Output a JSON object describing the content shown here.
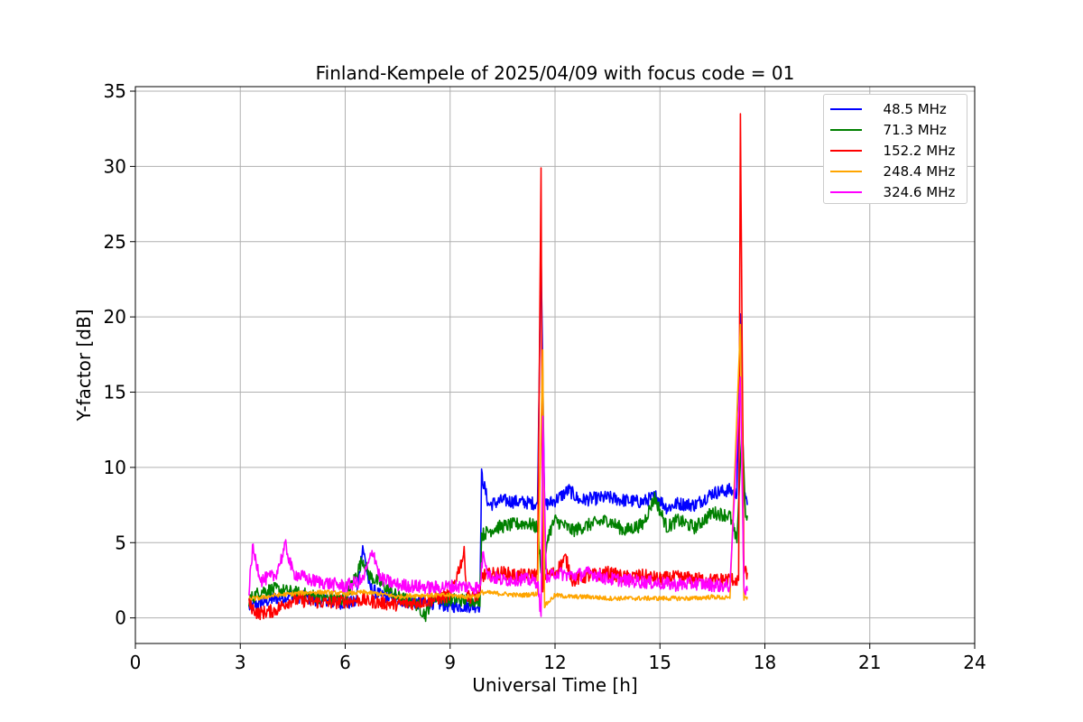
{
  "chart_data": {
    "type": "line",
    "title": "Finland-Kempele of 2025/04/09 with focus code = 01",
    "xlabel": "Universal Time [h]",
    "ylabel": "Y-factor [dB]",
    "xlim": [
      0,
      24
    ],
    "ylim": [
      -1.7,
      35.3
    ],
    "xticks": [
      "0",
      "3",
      "6",
      "9",
      "12",
      "15",
      "18",
      "21",
      "24"
    ],
    "yticks": [
      "0",
      "5",
      "10",
      "15",
      "20",
      "25",
      "30",
      "35"
    ],
    "grid": true,
    "legend_position": "top-right",
    "series": [
      {
        "name": "  48.5 MHz",
        "color": "#0000ff",
        "points": [
          [
            3.25,
            0.7
          ],
          [
            3.6,
            1.0
          ],
          [
            4.0,
            1.3
          ],
          [
            4.5,
            1.5
          ],
          [
            5.0,
            1.3
          ],
          [
            5.5,
            1.1
          ],
          [
            6.0,
            1.0
          ],
          [
            6.3,
            1.0
          ],
          [
            6.5,
            4.8
          ],
          [
            6.7,
            2.0
          ],
          [
            7.0,
            1.5
          ],
          [
            7.5,
            1.2
          ],
          [
            8.0,
            1.0
          ],
          [
            8.5,
            1.0
          ],
          [
            9.0,
            0.8
          ],
          [
            9.5,
            0.8
          ],
          [
            9.85,
            0.8
          ],
          [
            9.9,
            9.5
          ],
          [
            10.1,
            7.5
          ],
          [
            10.5,
            7.8
          ],
          [
            11.0,
            7.7
          ],
          [
            11.5,
            7.6
          ],
          [
            11.6,
            24.5
          ],
          [
            11.7,
            7.5
          ],
          [
            12.0,
            7.8
          ],
          [
            12.4,
            8.5
          ],
          [
            12.7,
            7.8
          ],
          [
            13.0,
            7.9
          ],
          [
            13.5,
            8.0
          ],
          [
            14.0,
            7.8
          ],
          [
            14.5,
            7.7
          ],
          [
            14.9,
            8.1
          ],
          [
            15.2,
            7.3
          ],
          [
            15.5,
            7.6
          ],
          [
            16.0,
            7.5
          ],
          [
            16.5,
            8.3
          ],
          [
            17.0,
            8.5
          ],
          [
            17.2,
            8.2
          ],
          [
            17.3,
            20.2
          ],
          [
            17.4,
            8.5
          ],
          [
            17.5,
            7.5
          ]
        ]
      },
      {
        "name": "  71.3 MHz",
        "color": "#008000",
        "points": [
          [
            3.25,
            1.2
          ],
          [
            3.6,
            1.8
          ],
          [
            4.0,
            1.9
          ],
          [
            4.5,
            1.7
          ],
          [
            5.0,
            1.5
          ],
          [
            5.5,
            1.3
          ],
          [
            6.0,
            1.2
          ],
          [
            6.5,
            3.9
          ],
          [
            6.7,
            2.8
          ],
          [
            7.0,
            2.3
          ],
          [
            7.5,
            1.4
          ],
          [
            8.0,
            1.0
          ],
          [
            8.3,
            0.2
          ],
          [
            8.5,
            1.4
          ],
          [
            9.0,
            1.2
          ],
          [
            9.5,
            1.2
          ],
          [
            9.85,
            1.2
          ],
          [
            9.9,
            5.5
          ],
          [
            10.3,
            6.0
          ],
          [
            10.8,
            6.2
          ],
          [
            11.2,
            6.3
          ],
          [
            11.5,
            6.0
          ],
          [
            11.65,
            2.0
          ],
          [
            11.8,
            5.5
          ],
          [
            12.0,
            6.5
          ],
          [
            12.5,
            5.8
          ],
          [
            13.0,
            6.2
          ],
          [
            13.5,
            6.5
          ],
          [
            14.0,
            5.8
          ],
          [
            14.5,
            6.2
          ],
          [
            14.85,
            8.0
          ],
          [
            15.2,
            6.0
          ],
          [
            15.5,
            6.5
          ],
          [
            16.0,
            6.0
          ],
          [
            16.5,
            7.0
          ],
          [
            17.0,
            6.8
          ],
          [
            17.2,
            5.0
          ],
          [
            17.35,
            13.0
          ],
          [
            17.45,
            6.5
          ],
          [
            17.5,
            6.8
          ]
        ]
      },
      {
        "name": "  152.2 MHz",
        "color": "#ff0000",
        "points": [
          [
            3.25,
            0.9
          ],
          [
            3.5,
            0.3
          ],
          [
            4.0,
            0.5
          ],
          [
            4.3,
            1.0
          ],
          [
            4.5,
            1.2
          ],
          [
            5.0,
            1.1
          ],
          [
            5.5,
            1.0
          ],
          [
            6.0,
            1.1
          ],
          [
            6.5,
            1.2
          ],
          [
            7.0,
            1.0
          ],
          [
            7.5,
            0.9
          ],
          [
            8.0,
            1.0
          ],
          [
            8.5,
            1.2
          ],
          [
            9.0,
            1.5
          ],
          [
            9.4,
            4.3
          ],
          [
            9.5,
            1.4
          ],
          [
            9.85,
            1.5
          ],
          [
            9.9,
            2.8
          ],
          [
            10.5,
            3.0
          ],
          [
            11.0,
            2.8
          ],
          [
            11.5,
            2.9
          ],
          [
            11.6,
            29.9
          ],
          [
            11.65,
            2.0
          ],
          [
            11.7,
            2.8
          ],
          [
            12.0,
            3.0
          ],
          [
            12.3,
            4.0
          ],
          [
            12.5,
            2.5
          ],
          [
            13.0,
            2.8
          ],
          [
            13.5,
            3.0
          ],
          [
            14.0,
            2.7
          ],
          [
            14.5,
            2.8
          ],
          [
            15.0,
            2.6
          ],
          [
            15.5,
            2.7
          ],
          [
            16.0,
            2.6
          ],
          [
            16.5,
            2.5
          ],
          [
            17.0,
            2.6
          ],
          [
            17.25,
            2.5
          ],
          [
            17.3,
            33.5
          ],
          [
            17.4,
            3.0
          ],
          [
            17.5,
            3.0
          ]
        ]
      },
      {
        "name": "  248.4 MHz",
        "color": "#ffa500",
        "points": [
          [
            3.25,
            1.3
          ],
          [
            3.5,
            1.3
          ],
          [
            4.0,
            1.5
          ],
          [
            4.5,
            1.6
          ],
          [
            5.0,
            1.7
          ],
          [
            5.5,
            1.7
          ],
          [
            6.0,
            1.6
          ],
          [
            6.5,
            1.7
          ],
          [
            7.0,
            1.6
          ],
          [
            7.5,
            1.4
          ],
          [
            8.0,
            1.5
          ],
          [
            8.5,
            1.5
          ],
          [
            9.0,
            1.5
          ],
          [
            9.5,
            1.4
          ],
          [
            9.85,
            1.5
          ],
          [
            9.9,
            1.7
          ],
          [
            10.5,
            1.6
          ],
          [
            11.0,
            1.5
          ],
          [
            11.5,
            1.6
          ],
          [
            11.65,
            17.8
          ],
          [
            11.7,
            0.8
          ],
          [
            12.0,
            1.5
          ],
          [
            12.5,
            1.4
          ],
          [
            13.0,
            1.4
          ],
          [
            13.5,
            1.3
          ],
          [
            14.0,
            1.3
          ],
          [
            14.5,
            1.3
          ],
          [
            15.0,
            1.3
          ],
          [
            15.5,
            1.3
          ],
          [
            16.0,
            1.3
          ],
          [
            16.5,
            1.4
          ],
          [
            17.0,
            1.3
          ],
          [
            17.3,
            19.5
          ],
          [
            17.4,
            1.3
          ],
          [
            17.5,
            1.4
          ]
        ]
      },
      {
        "name": "  324.6 MHz",
        "color": "#ff00ff",
        "points": [
          [
            3.25,
            1.8
          ],
          [
            3.35,
            4.6
          ],
          [
            3.6,
            2.5
          ],
          [
            4.0,
            2.8
          ],
          [
            4.3,
            4.8
          ],
          [
            4.5,
            3.0
          ],
          [
            5.0,
            2.5
          ],
          [
            5.5,
            2.3
          ],
          [
            6.0,
            2.1
          ],
          [
            6.5,
            2.5
          ],
          [
            6.8,
            4.5
          ],
          [
            7.0,
            2.6
          ],
          [
            7.5,
            2.2
          ],
          [
            8.0,
            2.1
          ],
          [
            8.5,
            2.0
          ],
          [
            9.0,
            2.1
          ],
          [
            9.5,
            2.1
          ],
          [
            9.85,
            2.0
          ],
          [
            9.95,
            4.5
          ],
          [
            10.1,
            2.8
          ],
          [
            10.5,
            2.5
          ],
          [
            11.0,
            2.6
          ],
          [
            11.5,
            2.4
          ],
          [
            11.6,
            0.1
          ],
          [
            11.65,
            13.4
          ],
          [
            11.75,
            2.5
          ],
          [
            12.0,
            3.0
          ],
          [
            12.5,
            2.8
          ],
          [
            13.0,
            3.0
          ],
          [
            13.5,
            2.6
          ],
          [
            14.0,
            2.5
          ],
          [
            14.5,
            2.4
          ],
          [
            15.0,
            2.3
          ],
          [
            15.5,
            2.2
          ],
          [
            16.0,
            2.3
          ],
          [
            16.5,
            2.2
          ],
          [
            17.0,
            2.1
          ],
          [
            17.3,
            16.0
          ],
          [
            17.4,
            2.0
          ],
          [
            17.5,
            1.8
          ]
        ]
      }
    ]
  }
}
